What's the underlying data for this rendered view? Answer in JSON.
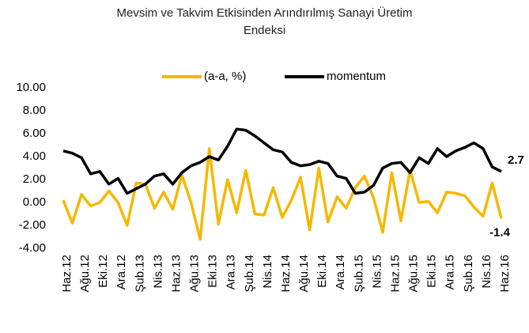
{
  "chart_data": {
    "type": "line",
    "title": "Mevsim ve Takvim Etkisinden Arındırılmış Sanayi Üretim Endeksi",
    "categories": [
      "Haz.12",
      null,
      "Ağu.12",
      null,
      "Eki.12",
      null,
      "Ara.12",
      null,
      "Şub.13",
      null,
      "Nis.13",
      null,
      "Haz.13",
      null,
      "Ağu.13",
      null,
      "Eki.13",
      null,
      "Ara.13",
      null,
      "Şub.14",
      null,
      "Nis.14",
      null,
      "Haz.14",
      null,
      "Ağu.14",
      null,
      "Eki.14",
      null,
      "Ara.14",
      null,
      "Şub.15",
      null,
      "Nis.15",
      null,
      "Haz.15",
      null,
      "Ağu.15",
      null,
      "Eki.15",
      null,
      "Ara.15",
      null,
      "Şub.16",
      null,
      "Nis.16",
      null,
      "Haz.16"
    ],
    "series": [
      {
        "name": "(a-a, %)",
        "color": "#f5b800",
        "values": [
          0.2,
          -1.8,
          0.7,
          -0.3,
          0.0,
          1.0,
          0.0,
          -2.0,
          1.7,
          1.6,
          -0.5,
          0.9,
          -0.6,
          2.4,
          0.0,
          -3.2,
          4.7,
          -1.9,
          2.0,
          -0.9,
          2.8,
          -1.0,
          -1.1,
          1.3,
          -1.3,
          0.2,
          2.2,
          -2.4,
          3.0,
          -1.7,
          0.5,
          -0.5,
          1.3,
          2.3,
          0.4,
          -2.6,
          2.6,
          -1.6,
          2.8,
          0.0,
          0.1,
          -0.9,
          0.9,
          0.8,
          0.6,
          -0.4,
          -1.2,
          1.7,
          -1.4
        ]
      },
      {
        "name": "momentum",
        "color": "#000000",
        "values": [
          4.5,
          4.3,
          3.9,
          2.5,
          2.7,
          1.6,
          2.1,
          0.8,
          1.2,
          1.6,
          2.3,
          2.5,
          1.6,
          2.6,
          3.2,
          3.5,
          4.0,
          3.7,
          4.9,
          6.4,
          6.3,
          5.8,
          5.2,
          4.6,
          4.4,
          3.5,
          3.2,
          3.3,
          3.6,
          3.4,
          2.3,
          2.1,
          0.8,
          0.9,
          1.5,
          3.0,
          3.4,
          3.5,
          2.6,
          3.9,
          3.4,
          4.7,
          4.0,
          4.5,
          4.8,
          5.2,
          4.7,
          3.1,
          2.7
        ]
      }
    ],
    "ylim": [
      -4,
      10
    ],
    "yticks": [
      {
        "value": -4,
        "label": "-4.00"
      },
      {
        "value": -2,
        "label": "-2.00"
      },
      {
        "value": 0,
        "label": "0.00"
      },
      {
        "value": 2,
        "label": "2.00"
      },
      {
        "value": 4,
        "label": "4.00"
      },
      {
        "value": 6,
        "label": "6.00"
      },
      {
        "value": 8,
        "label": "8.00"
      },
      {
        "value": 10,
        "label": "10.00"
      }
    ],
    "legend": "top",
    "grid": false
  }
}
